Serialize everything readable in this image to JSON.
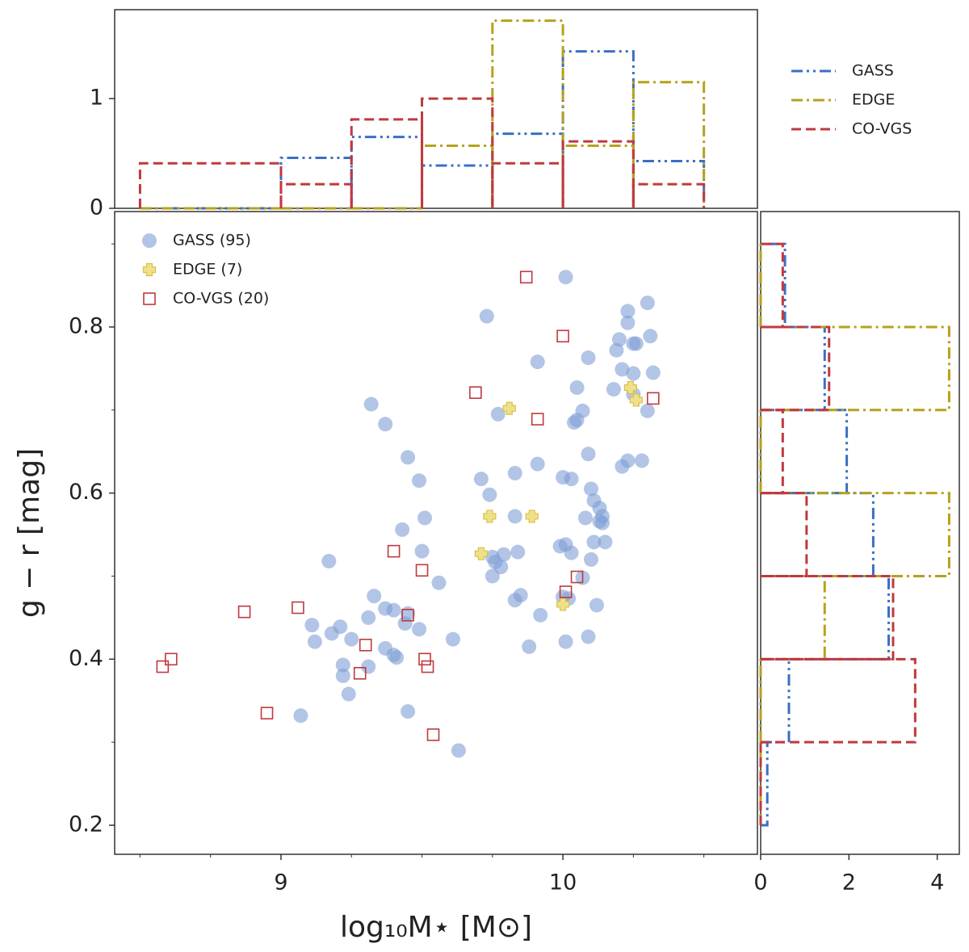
{
  "chart_data": [
    {
      "type": "scatter",
      "xlabel": "log₁₀M⋆ [M⊙]",
      "ylabel": "g − r [mag]",
      "xlim": [
        8.41,
        10.69
      ],
      "ylim": [
        0.165,
        0.939
      ],
      "xticks": [
        9,
        10
      ],
      "yticks": [
        0.2,
        0.4,
        0.6,
        0.8
      ],
      "xticks_minor": [
        8.5,
        8.75,
        9.25,
        9.5,
        9.75,
        10.25,
        10.5
      ],
      "yticks_minor": [
        0.3,
        0.5,
        0.7,
        0.9
      ],
      "legend": "upper left",
      "series": [
        {
          "name": "GASS (95)",
          "color": "#7e9fd6",
          "marker": "circle",
          "x": [
            9.73,
            10.01,
            10.3,
            10.23,
            10.23,
            10.31,
            10.26,
            10.25,
            10.2,
            10.19,
            10.09,
            9.91,
            10.21,
            10.25,
            10.32,
            10.05,
            10.18,
            10.25,
            10.3,
            9.32,
            9.37,
            9.77,
            10.07,
            10.05,
            10.04,
            10.09,
            10.23,
            10.28,
            10.21,
            9.45,
            9.49,
            9.71,
            9.83,
            9.91,
            9.74,
            10.0,
            10.03,
            10.1,
            10.11,
            10.13,
            10.14,
            10.13,
            10.14,
            10.08,
            9.83,
            9.51,
            9.43,
            10.15,
            10.11,
            9.5,
            9.17,
            9.75,
            9.79,
            9.76,
            9.99,
            10.01,
            10.03,
            9.84,
            9.75,
            9.78,
            10.1,
            10.07,
            9.56,
            9.33,
            9.37,
            9.4,
            9.31,
            9.83,
            9.85,
            9.92,
            10.12,
            10.02,
            9.11,
            9.18,
            9.21,
            9.12,
            9.25,
            9.45,
            9.44,
            9.49,
            9.61,
            9.37,
            9.4,
            9.41,
            9.31,
            9.22,
            9.22,
            9.24,
            9.07,
            9.45,
            9.63,
            9.88,
            10.01,
            10.09,
            10.0
          ],
          "y": [
            0.813,
            0.86,
            0.829,
            0.819,
            0.805,
            0.789,
            0.78,
            0.78,
            0.785,
            0.772,
            0.763,
            0.758,
            0.749,
            0.744,
            0.745,
            0.727,
            0.725,
            0.719,
            0.699,
            0.707,
            0.683,
            0.695,
            0.699,
            0.688,
            0.685,
            0.647,
            0.639,
            0.639,
            0.632,
            0.643,
            0.615,
            0.617,
            0.624,
            0.635,
            0.598,
            0.619,
            0.617,
            0.605,
            0.591,
            0.582,
            0.572,
            0.566,
            0.564,
            0.57,
            0.572,
            0.57,
            0.556,
            0.541,
            0.541,
            0.53,
            0.518,
            0.523,
            0.526,
            0.517,
            0.536,
            0.538,
            0.528,
            0.529,
            0.5,
            0.511,
            0.52,
            0.498,
            0.492,
            0.476,
            0.461,
            0.459,
            0.45,
            0.471,
            0.477,
            0.453,
            0.465,
            0.473,
            0.441,
            0.431,
            0.439,
            0.421,
            0.424,
            0.455,
            0.443,
            0.436,
            0.424,
            0.413,
            0.405,
            0.402,
            0.391,
            0.393,
            0.38,
            0.358,
            0.332,
            0.337,
            0.29,
            0.415,
            0.421,
            0.427,
            0.475
          ]
        },
        {
          "name": "EDGE (7)",
          "color": "#d9c24a",
          "marker": "plus",
          "x": [
            9.81,
            9.74,
            9.89,
            9.71,
            10.0,
            10.24,
            10.26
          ],
          "y": [
            0.702,
            0.572,
            0.572,
            0.527,
            0.466,
            0.727,
            0.712
          ]
        },
        {
          "name": "CO-VGS (20)",
          "color": "#c0393f",
          "marker": "square",
          "x": [
            9.87,
            10.0,
            9.69,
            9.91,
            10.32,
            9.4,
            9.5,
            9.45,
            10.05,
            10.01,
            8.87,
            9.06,
            9.3,
            9.28,
            9.51,
            9.52,
            9.54,
            8.95,
            8.61,
            8.58
          ],
          "y": [
            0.86,
            0.789,
            0.721,
            0.689,
            0.714,
            0.53,
            0.507,
            0.453,
            0.499,
            0.481,
            0.457,
            0.462,
            0.417,
            0.383,
            0.4,
            0.391,
            0.309,
            0.335,
            0.4,
            0.391
          ]
        }
      ]
    },
    {
      "type": "histogram",
      "xlim": [
        8.41,
        10.69
      ],
      "ylim": [
        0,
        1.81
      ],
      "yticks": [
        0,
        1
      ],
      "bins": [
        8.5,
        9.0,
        9.25,
        9.5,
        9.75,
        10.0,
        10.25,
        10.5
      ],
      "legend": "outside upper right",
      "series": [
        {
          "name": "GASS",
          "color": "#3a6fc4",
          "dash": "dashdotdot",
          "counts": [
            0,
            0.46,
            0.65,
            0.39,
            0.68,
            1.43,
            0.43
          ]
        },
        {
          "name": "EDGE",
          "color": "#b5a21c",
          "dash": "dashdot",
          "counts": [
            0,
            0,
            0,
            0.57,
            1.71,
            0.57,
            1.15
          ]
        },
        {
          "name": "CO-VGS",
          "color": "#c0393f",
          "dash": "dashed",
          "counts": [
            0.41,
            0.22,
            0.81,
            1.0,
            0.41,
            0.61,
            0.22
          ]
        }
      ]
    },
    {
      "type": "histogram",
      "orientation": "horizontal",
      "xlim": [
        0,
        4.5
      ],
      "ylim": [
        0.165,
        0.939
      ],
      "xticks": [
        0,
        2,
        4
      ],
      "bins": [
        0.2,
        0.3,
        0.4,
        0.5,
        0.6,
        0.7,
        0.8,
        0.9
      ],
      "series": [
        {
          "color": "#3a6fc4",
          "dash": "dashdotdot",
          "counts": [
            0.15,
            0.64,
            2.9,
            2.55,
            1.95,
            1.45,
            0.55
          ]
        },
        {
          "color": "#b5a21c",
          "dash": "dashdot",
          "counts": [
            0,
            0,
            1.45,
            4.27,
            0,
            4.27,
            0
          ]
        },
        {
          "color": "#c0393f",
          "dash": "dashed",
          "counts": [
            0,
            3.5,
            3.0,
            1.04,
            0.5,
            1.55,
            0.5
          ]
        }
      ]
    }
  ]
}
